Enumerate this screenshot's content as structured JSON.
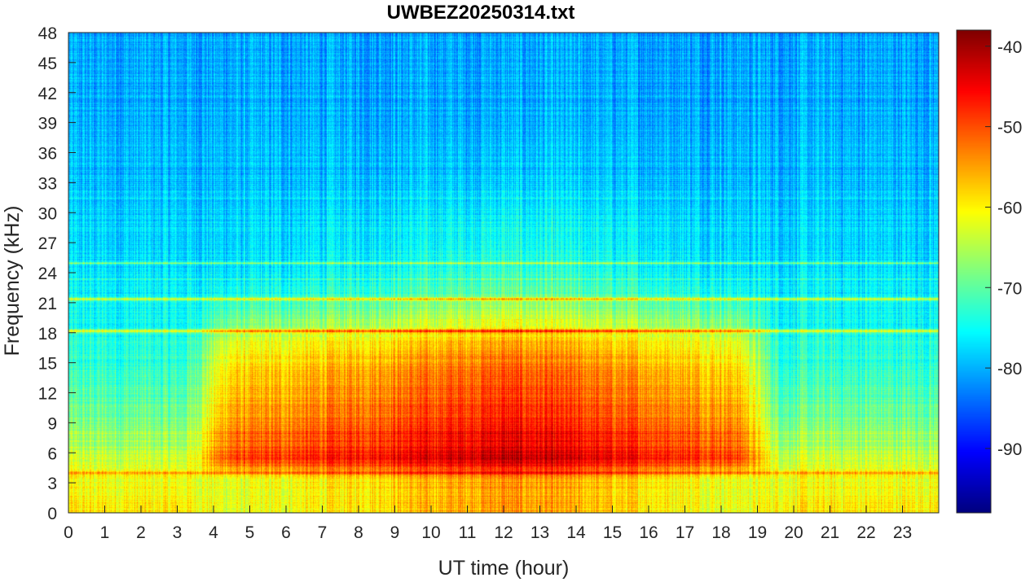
{
  "chart_data": {
    "type": "heatmap",
    "title": "UWBEZ20250314.txt",
    "xlabel": "UT time (hour)",
    "ylabel": "Frequency (kHz)",
    "xlim": [
      0,
      24
    ],
    "ylim": [
      0,
      48
    ],
    "xticks": [
      "0",
      "1",
      "2",
      "3",
      "4",
      "5",
      "6",
      "7",
      "8",
      "9",
      "10",
      "11",
      "12",
      "13",
      "14",
      "15",
      "16",
      "17",
      "18",
      "19",
      "20",
      "21",
      "22",
      "23"
    ],
    "yticks": [
      "0",
      "3",
      "6",
      "9",
      "12",
      "15",
      "18",
      "21",
      "24",
      "27",
      "30",
      "33",
      "36",
      "39",
      "42",
      "45",
      "48"
    ],
    "colorbar": {
      "range": [
        -98,
        -38
      ],
      "ticks": [
        "-90",
        "-80",
        "-70",
        "-60",
        "-50",
        "-40"
      ],
      "colormap": "jet"
    },
    "features": {
      "daytime_enhancement": {
        "start_hour": 4,
        "end_hour": 19.5,
        "peak_level": -50,
        "freq_range_khz": [
          4,
          16
        ]
      },
      "persistent_lines_khz": [
        18.2,
        21.4,
        25.0,
        4.0,
        23.4
      ],
      "night_background_level": -80
    }
  }
}
